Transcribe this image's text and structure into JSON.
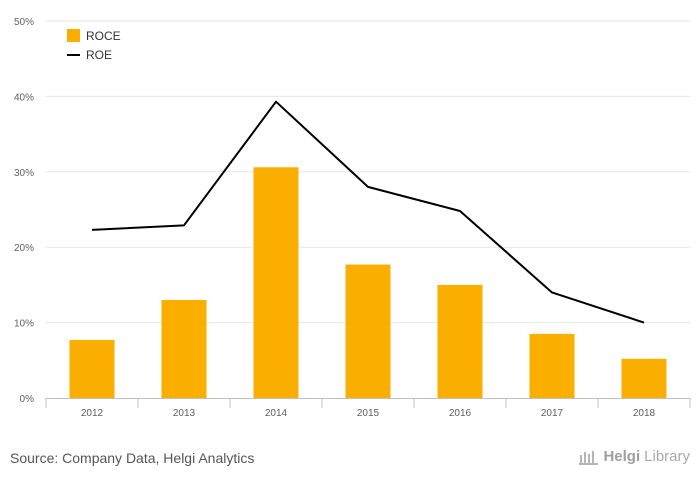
{
  "chart_data": {
    "type": "bar",
    "categories": [
      "2012",
      "2013",
      "2014",
      "2015",
      "2016",
      "2017",
      "2018"
    ],
    "series": [
      {
        "name": "ROCE",
        "kind": "bar",
        "color": "#f9ae00",
        "values": [
          7.7,
          13.0,
          30.6,
          17.7,
          15.0,
          8.5,
          5.2
        ]
      },
      {
        "name": "ROE",
        "kind": "line",
        "color": "#000000",
        "values": [
          22.3,
          22.9,
          39.3,
          28.0,
          24.8,
          14.0,
          10.0
        ]
      }
    ],
    "ylim": [
      0,
      50
    ],
    "yticks": [
      "0%",
      "10%",
      "20%",
      "30%",
      "40%",
      "50%"
    ],
    "grid": true,
    "legend": "top-left"
  },
  "footer": {
    "source": "Source: Company Data, Helgi Analytics",
    "logo_text_a": "Helgi",
    "logo_text_b": "Library"
  }
}
